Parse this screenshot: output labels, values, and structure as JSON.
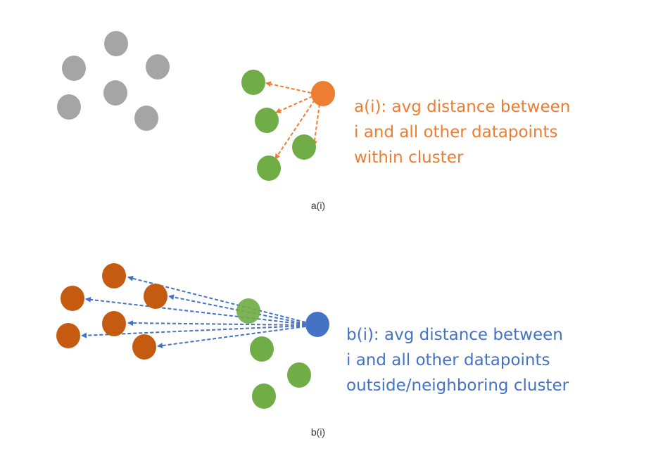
{
  "panels": [
    {
      "id": "a",
      "caption": "a(i)",
      "description_lines": [
        "a(i): avg distance between",
        "i and all other datapoints",
        "within cluster"
      ]
    },
    {
      "id": "b",
      "caption": "b(i)",
      "description_lines": [
        "b(i): avg distance between",
        "i and all other datapoints",
        "outside/neighboring cluster"
      ]
    }
  ],
  "colors": {
    "gray_points": "#a5a5a5",
    "green_points": "#70ad47",
    "orange_point": "#ed7d31",
    "orange_text": "#ed7d31",
    "brown_points": "#c55a11",
    "blue_point": "#4472c4",
    "blue_text": "#4472c4",
    "arrow_a": "#ed7d31",
    "arrow_b": "#4472c4"
  }
}
